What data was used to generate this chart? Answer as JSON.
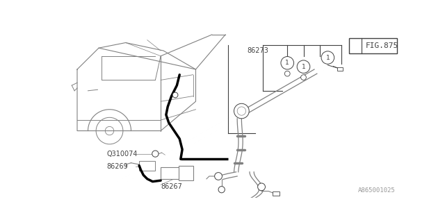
{
  "bg_color": "#ffffff",
  "line_color": "#808080",
  "dark_line_color": "#404040",
  "thick_line_color": "#000000",
  "fig_label": "FIG.875",
  "fig_num": "1",
  "watermark": "A865001025",
  "label_86273": "86273",
  "label_86269": "86269",
  "label_86267": "86267",
  "label_Q310074": "Q310074"
}
